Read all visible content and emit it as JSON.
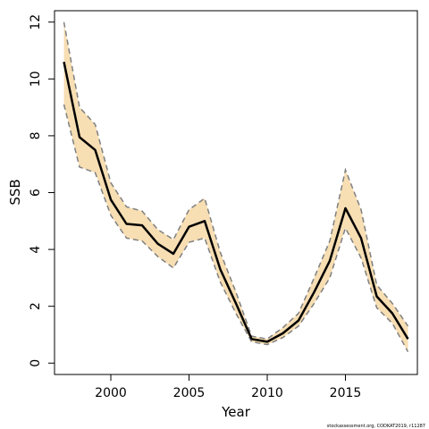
{
  "chart_data": {
    "type": "line",
    "title": "",
    "xlabel": "Year",
    "ylabel": "SSB",
    "xlim": [
      1996.4,
      2019.6
    ],
    "ylim": [
      -0.4,
      12.4
    ],
    "xticks": [
      2000,
      2005,
      2010,
      2015
    ],
    "yticks": [
      0,
      2,
      4,
      6,
      8,
      10,
      12
    ],
    "grid": false,
    "footnote": "stockassessment.org, CODKAT2019, r11287",
    "colors": {
      "band": "#f7deb3",
      "estimate": "#000000",
      "bounds": "#808080",
      "frame": "#000000"
    },
    "x": [
      1997,
      1998,
      1999,
      2000,
      2001,
      2002,
      2003,
      2004,
      2005,
      2006,
      2007,
      2008,
      2009,
      2010,
      2011,
      2012,
      2013,
      2014,
      2015,
      2016,
      2017,
      2018,
      2019
    ],
    "series": [
      {
        "role": "estimate",
        "values": [
          10.6,
          7.95,
          7.5,
          5.75,
          4.9,
          4.85,
          4.2,
          3.85,
          4.8,
          5.0,
          3.3,
          2.1,
          0.85,
          0.75,
          1.05,
          1.5,
          2.5,
          3.6,
          5.45,
          4.4,
          2.35,
          1.75,
          0.85
        ]
      },
      {
        "role": "upper-bound",
        "values": [
          12.0,
          9.0,
          8.4,
          6.35,
          5.5,
          5.35,
          4.7,
          4.35,
          5.4,
          5.8,
          3.9,
          2.5,
          0.95,
          0.85,
          1.25,
          1.75,
          3.0,
          4.3,
          6.8,
          5.4,
          2.75,
          2.1,
          1.3
        ]
      },
      {
        "role": "lower-bound",
        "values": [
          9.1,
          6.9,
          6.7,
          5.2,
          4.4,
          4.3,
          3.75,
          3.35,
          4.25,
          4.4,
          2.85,
          1.75,
          0.75,
          0.65,
          0.9,
          1.3,
          2.1,
          3.0,
          4.75,
          3.7,
          1.95,
          1.4,
          0.4
        ]
      }
    ]
  }
}
